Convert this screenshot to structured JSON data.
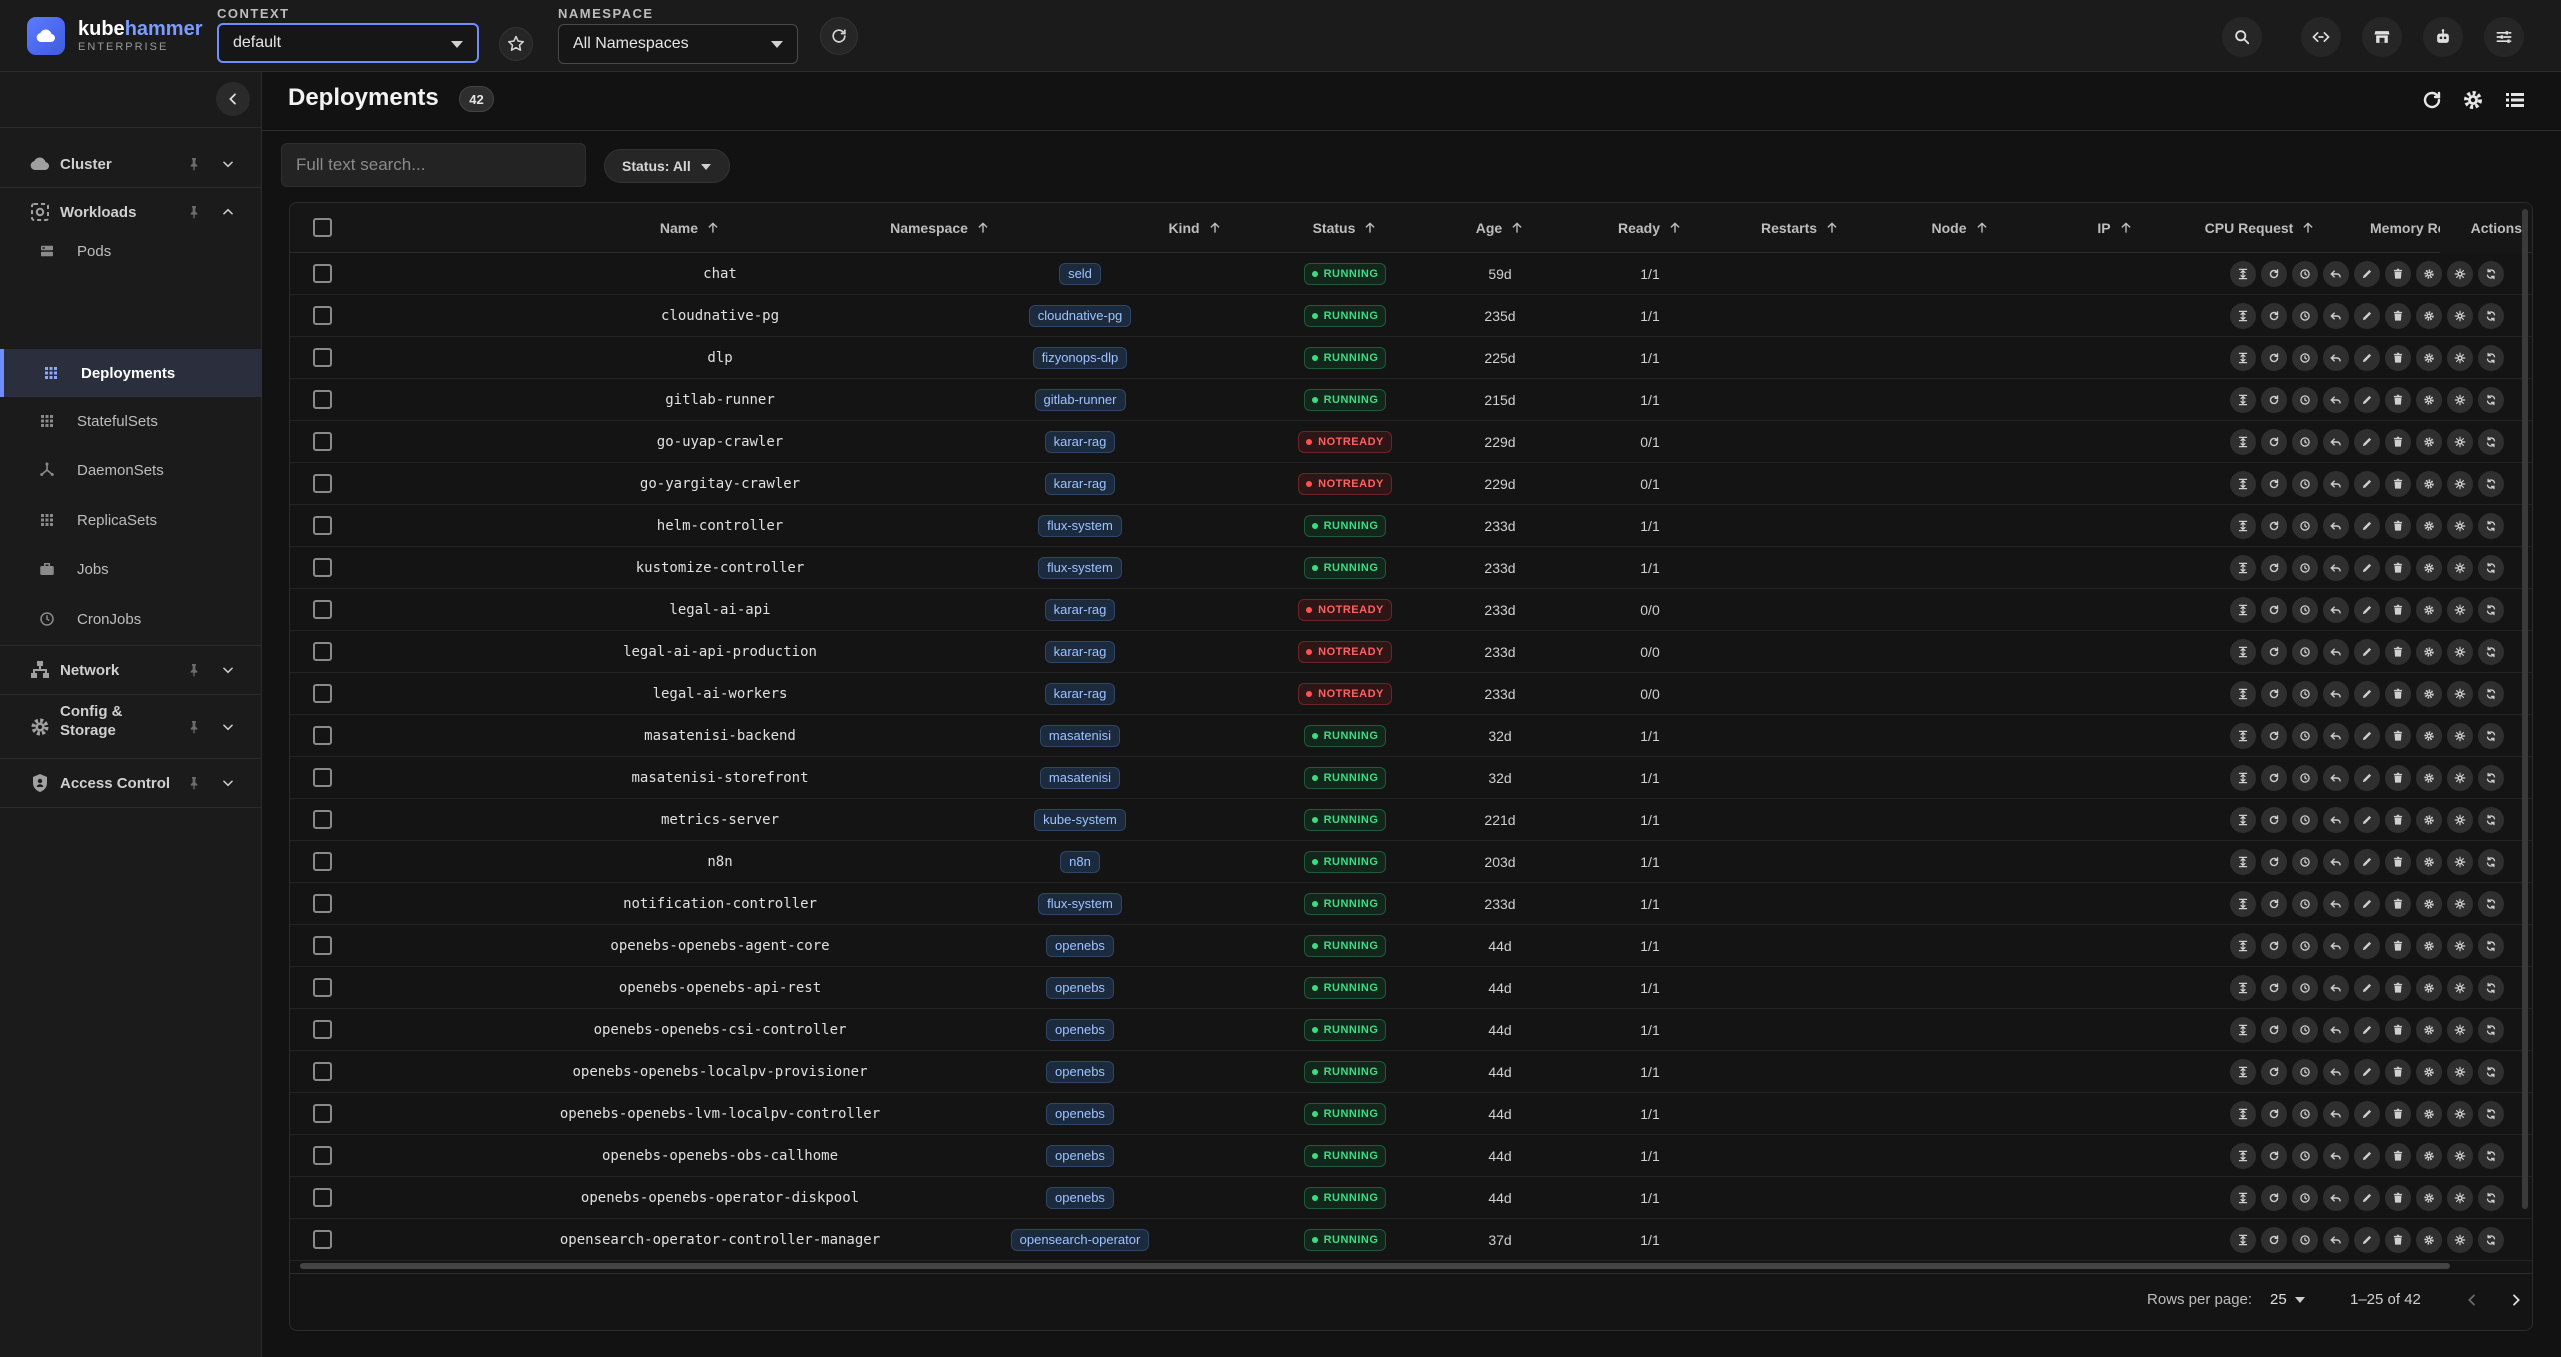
{
  "app": {
    "brand_part1": "kube",
    "brand_part2": "hammer",
    "edition": "ENTERPRISE"
  },
  "topbar": {
    "context_label": "CONTEXT",
    "context_value": "default",
    "namespace_label": "NAMESPACE",
    "namespace_value": "All Namespaces",
    "tools": [
      "search-icon",
      "port-forward-icon",
      "store-icon",
      "ai-assistant-icon",
      "settings-sliders-icon"
    ]
  },
  "sidebar": {
    "groups": {
      "cluster": "Cluster",
      "workloads": "Workloads",
      "network": "Network",
      "config_line1": "Config &",
      "config_line2": "Storage",
      "access": "Access Control"
    },
    "items": [
      {
        "label": "Pods",
        "icon": "pods-icon",
        "active": false
      },
      {
        "label": "Deployments",
        "icon": "deployments-icon",
        "active": true
      },
      {
        "label": "StatefulSets",
        "icon": "statefulsets-icon",
        "active": false
      },
      {
        "label": "DaemonSets",
        "icon": "daemonsets-icon",
        "active": false
      },
      {
        "label": "ReplicaSets",
        "icon": "replicasets-icon",
        "active": false
      },
      {
        "label": "Jobs",
        "icon": "jobs-icon",
        "active": false
      },
      {
        "label": "CronJobs",
        "icon": "cronjobs-icon",
        "active": false
      }
    ]
  },
  "main": {
    "title": "Deployments",
    "count": "42",
    "search_placeholder": "Full text search...",
    "status_filter": "Status: All",
    "columns": [
      "Name",
      "Namespace",
      "Kind",
      "Status",
      "Age",
      "Ready",
      "Restarts",
      "Node",
      "IP",
      "CPU Request",
      "Memory Reques",
      "Actions"
    ],
    "rows": [
      {
        "name": "chat",
        "namespace": "seld",
        "status": "RUNNING",
        "age": "59d",
        "ready": "1/1"
      },
      {
        "name": "cloudnative-pg",
        "namespace": "cloudnative-pg",
        "status": "RUNNING",
        "age": "235d",
        "ready": "1/1"
      },
      {
        "name": "dlp",
        "namespace": "fizyonops-dlp",
        "status": "RUNNING",
        "age": "225d",
        "ready": "1/1"
      },
      {
        "name": "gitlab-runner",
        "namespace": "gitlab-runner",
        "status": "RUNNING",
        "age": "215d",
        "ready": "1/1"
      },
      {
        "name": "go-uyap-crawler",
        "namespace": "karar-rag",
        "status": "NOTREADY",
        "age": "229d",
        "ready": "0/1"
      },
      {
        "name": "go-yargitay-crawler",
        "namespace": "karar-rag",
        "status": "NOTREADY",
        "age": "229d",
        "ready": "0/1"
      },
      {
        "name": "helm-controller",
        "namespace": "flux-system",
        "status": "RUNNING",
        "age": "233d",
        "ready": "1/1"
      },
      {
        "name": "kustomize-controller",
        "namespace": "flux-system",
        "status": "RUNNING",
        "age": "233d",
        "ready": "1/1"
      },
      {
        "name": "legal-ai-api",
        "namespace": "karar-rag",
        "status": "NOTREADY",
        "age": "233d",
        "ready": "0/0"
      },
      {
        "name": "legal-ai-api-production",
        "namespace": "karar-rag",
        "status": "NOTREADY",
        "age": "233d",
        "ready": "0/0"
      },
      {
        "name": "legal-ai-workers",
        "namespace": "karar-rag",
        "status": "NOTREADY",
        "age": "233d",
        "ready": "0/0"
      },
      {
        "name": "masatenisi-backend",
        "namespace": "masatenisi",
        "status": "RUNNING",
        "age": "32d",
        "ready": "1/1"
      },
      {
        "name": "masatenisi-storefront",
        "namespace": "masatenisi",
        "status": "RUNNING",
        "age": "32d",
        "ready": "1/1"
      },
      {
        "name": "metrics-server",
        "namespace": "kube-system",
        "status": "RUNNING",
        "age": "221d",
        "ready": "1/1"
      },
      {
        "name": "n8n",
        "namespace": "n8n",
        "status": "RUNNING",
        "age": "203d",
        "ready": "1/1"
      },
      {
        "name": "notification-controller",
        "namespace": "flux-system",
        "status": "RUNNING",
        "age": "233d",
        "ready": "1/1"
      },
      {
        "name": "openebs-openebs-agent-core",
        "namespace": "openebs",
        "status": "RUNNING",
        "age": "44d",
        "ready": "1/1"
      },
      {
        "name": "openebs-openebs-api-rest",
        "namespace": "openebs",
        "status": "RUNNING",
        "age": "44d",
        "ready": "1/1"
      },
      {
        "name": "openebs-openebs-csi-controller",
        "namespace": "openebs",
        "status": "RUNNING",
        "age": "44d",
        "ready": "1/1"
      },
      {
        "name": "openebs-openebs-localpv-provisioner",
        "namespace": "openebs",
        "status": "RUNNING",
        "age": "44d",
        "ready": "1/1"
      },
      {
        "name": "openebs-openebs-lvm-localpv-controller",
        "namespace": "openebs",
        "status": "RUNNING",
        "age": "44d",
        "ready": "1/1"
      },
      {
        "name": "openebs-openebs-obs-callhome",
        "namespace": "openebs",
        "status": "RUNNING",
        "age": "44d",
        "ready": "1/1"
      },
      {
        "name": "openebs-openebs-operator-diskpool",
        "namespace": "openebs",
        "status": "RUNNING",
        "age": "44d",
        "ready": "1/1"
      },
      {
        "name": "opensearch-operator-controller-manager",
        "namespace": "opensearch-operator",
        "status": "RUNNING",
        "age": "37d",
        "ready": "1/1"
      }
    ],
    "row_actions": [
      "scale-icon",
      "restart-icon",
      "history-icon",
      "rollback-icon",
      "edit-icon",
      "delete-icon",
      "settings-icon",
      "helm-icon",
      "sync-icon"
    ],
    "pagination": {
      "rows_per_page_label": "Rows per page:",
      "rows_per_page": "25",
      "range": "1–25 of 42"
    }
  },
  "colors": {
    "accent": "#6f8dff",
    "running": "#3ddc84",
    "notready": "#ff5252",
    "namespace_chip": "#9ec3ff"
  }
}
